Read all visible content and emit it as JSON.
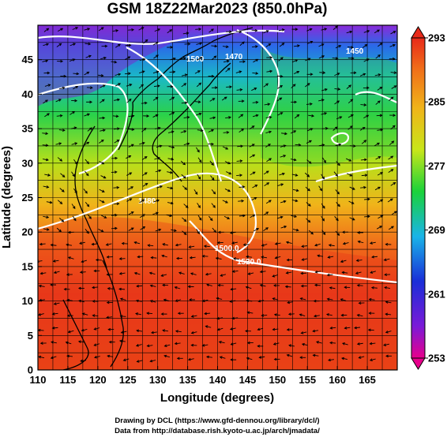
{
  "title": "GSM 18Z22Mar2023 (850.0hPa)",
  "x_axis": {
    "label": "Longitude (degrees)",
    "ticks": [
      "110",
      "115",
      "120",
      "125",
      "130",
      "135",
      "140",
      "145",
      "150",
      "155",
      "160",
      "165"
    ]
  },
  "y_axis": {
    "label": "Latitude  (degrees)",
    "ticks": [
      "0",
      "5",
      "10",
      "15",
      "20",
      "25",
      "30",
      "35",
      "40",
      "45"
    ]
  },
  "colorbar": {
    "labels": [
      "293",
      "285",
      "277",
      "269",
      "261",
      "253"
    ],
    "colors": [
      "#e8008c",
      "#1a2ed8",
      "#1ab4e8",
      "#1ad23a",
      "#c8e61a",
      "#f0a012",
      "#e82a1a"
    ]
  },
  "contour_labels": [
    "1500",
    "1470",
    "1480",
    "1450",
    "1520.0",
    "1500.0"
  ],
  "credits": {
    "line1": "Drawing by DCL (https://www.gfd-dennou.org/library/dcl/)",
    "line2": "Data from http://database.rish.kyoto-u.ac.jp/arch/jmadata/"
  }
}
